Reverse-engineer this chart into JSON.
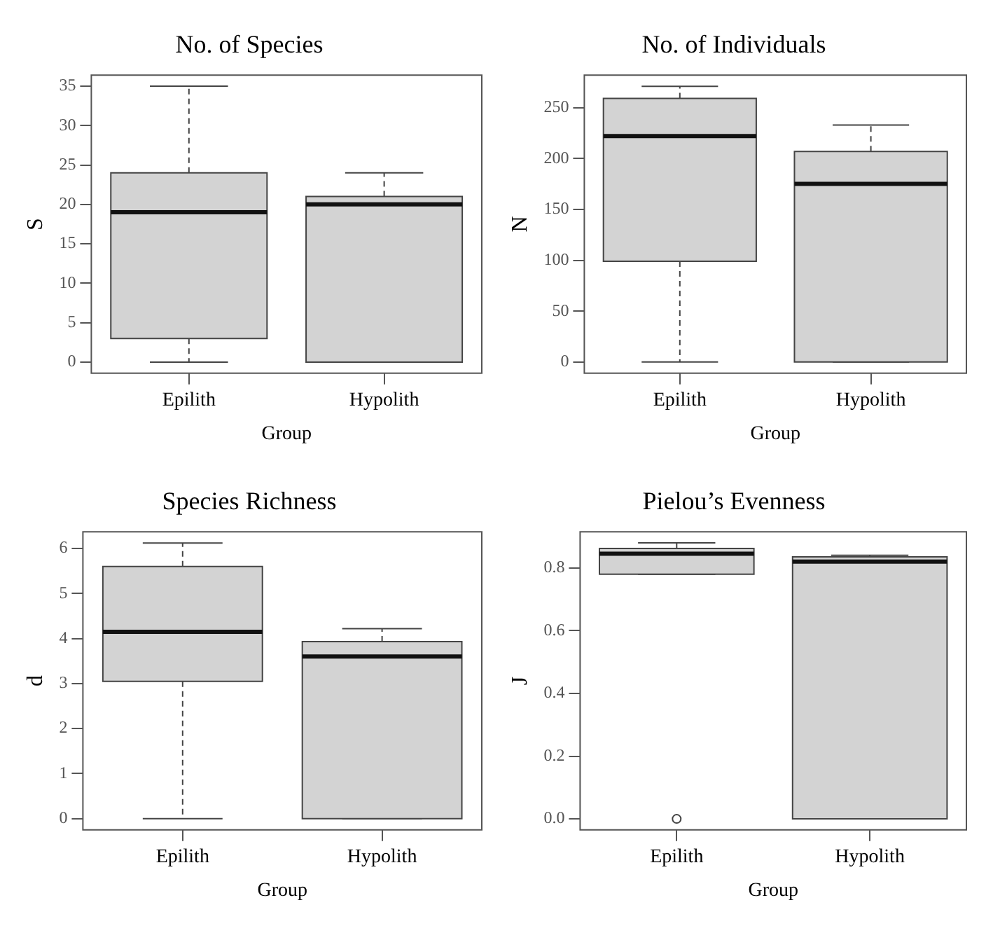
{
  "chart_data": [
    {
      "type": "box",
      "title": "No. of Species",
      "xlabel": "Group",
      "ylabel": "S",
      "categories": [
        "Epilith",
        "Hypolith"
      ],
      "ylim": [
        -1.4,
        36.4
      ],
      "yticks": [
        0,
        5,
        10,
        15,
        20,
        25,
        30,
        35
      ],
      "series": [
        {
          "color": "#d3d3d3",
          "boxes": [
            {
              "low": 0,
              "q1": 3,
              "median": 19,
              "q3": 24,
              "high": 35
            },
            {
              "low": 0,
              "q1": 0,
              "median": 20,
              "q3": 21,
              "high": 24
            }
          ]
        }
      ]
    },
    {
      "type": "box",
      "title": "No. of Individuals",
      "xlabel": "Group",
      "ylabel": "N",
      "categories": [
        "Epilith",
        "Hypolith"
      ],
      "ylim": [
        -11,
        282
      ],
      "yticks": [
        0,
        50,
        100,
        150,
        200,
        250
      ],
      "series": [
        {
          "color": "#d3d3d3",
          "boxes": [
            {
              "low": 0,
              "q1": 99,
              "median": 222,
              "q3": 259,
              "high": 271
            },
            {
              "low": 0,
              "q1": 0,
              "median": 175,
              "q3": 207,
              "high": 233
            }
          ]
        }
      ]
    },
    {
      "type": "box",
      "title": "Species Richness",
      "xlabel": "Group",
      "ylabel": "d",
      "categories": [
        "Epilith",
        "Hypolith"
      ],
      "ylim": [
        -0.25,
        6.37
      ],
      "yticks": [
        0,
        1,
        2,
        3,
        4,
        5,
        6
      ],
      "series": [
        {
          "color": "#d3d3d3",
          "boxes": [
            {
              "low": 0,
              "q1": 3.05,
              "median": 4.15,
              "q3": 5.6,
              "high": 6.12
            },
            {
              "low": 0,
              "q1": 0,
              "median": 3.6,
              "q3": 3.93,
              "high": 4.22
            }
          ]
        }
      ]
    },
    {
      "type": "box",
      "title": "Pielou’s Evenness",
      "xlabel": "Group",
      "ylabel": "J",
      "categories": [
        "Epilith",
        "Hypolith"
      ],
      "ylim": [
        -0.035,
        0.915
      ],
      "yticks": [
        {
          "value": 0,
          "label": "0.0"
        },
        {
          "value": 0.2,
          "label": "0.2"
        },
        {
          "value": 0.4,
          "label": "0.4"
        },
        {
          "value": 0.6,
          "label": "0.6"
        },
        {
          "value": 0.8,
          "label": "0.8"
        }
      ],
      "series": [
        {
          "color": "#d3d3d3",
          "boxes": [
            {
              "low": 0.78,
              "q1": 0.78,
              "median": 0.845,
              "q3": 0.862,
              "high": 0.88,
              "outliers": [
                0
              ]
            },
            {
              "low": 0,
              "q1": 0,
              "median": 0.82,
              "q3": 0.835,
              "high": 0.84
            }
          ]
        }
      ]
    }
  ]
}
